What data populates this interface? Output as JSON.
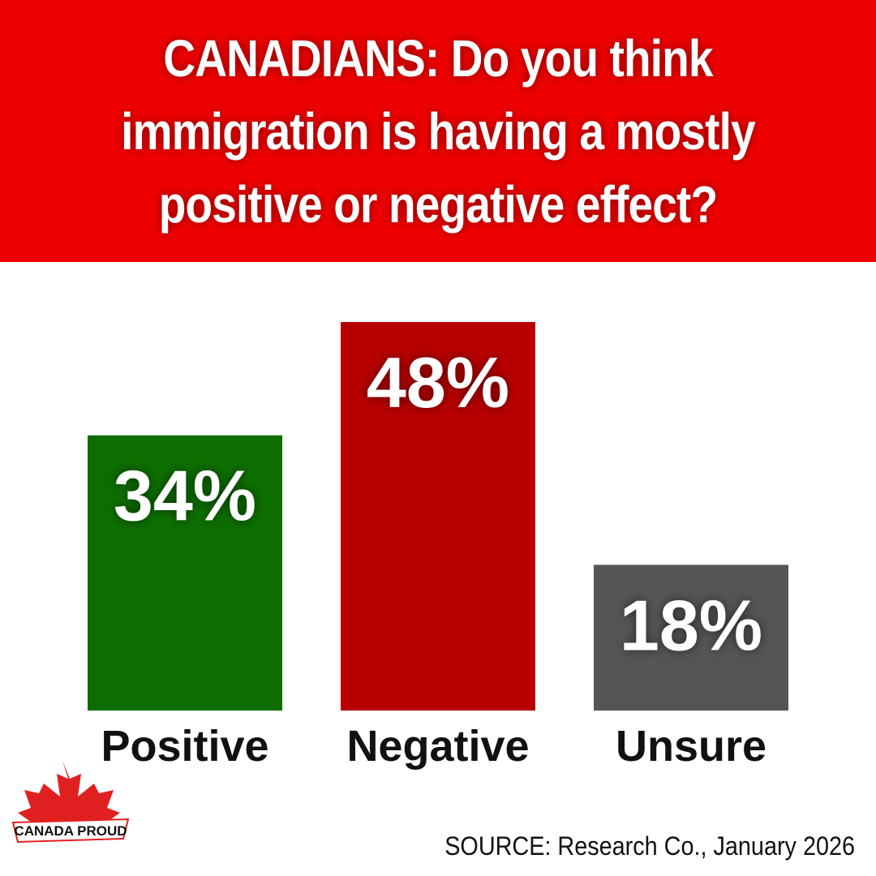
{
  "header": {
    "title": "CANADIANS: Do you think immigration is having a mostly positive or negative effect?"
  },
  "chart_data": {
    "type": "bar",
    "title": "CANADIANS: Do you think immigration is having a mostly positive or negative effect?",
    "xlabel": "",
    "ylabel": "",
    "ylim": [
      0,
      48
    ],
    "grid": false,
    "categories": [
      "Positive",
      "Negative",
      "Unsure"
    ],
    "values": [
      34,
      48,
      18
    ],
    "value_labels": [
      "34%",
      "48%",
      "18%"
    ],
    "unit": "%",
    "colors": [
      "#0d6e00",
      "#b80000",
      "#555555"
    ]
  },
  "logo": {
    "text": "CANADA PROUD",
    "icon": "maple-leaf-icon",
    "color": "#e02020"
  },
  "footer": {
    "source": "SOURCE: Research Co., January 2026"
  }
}
